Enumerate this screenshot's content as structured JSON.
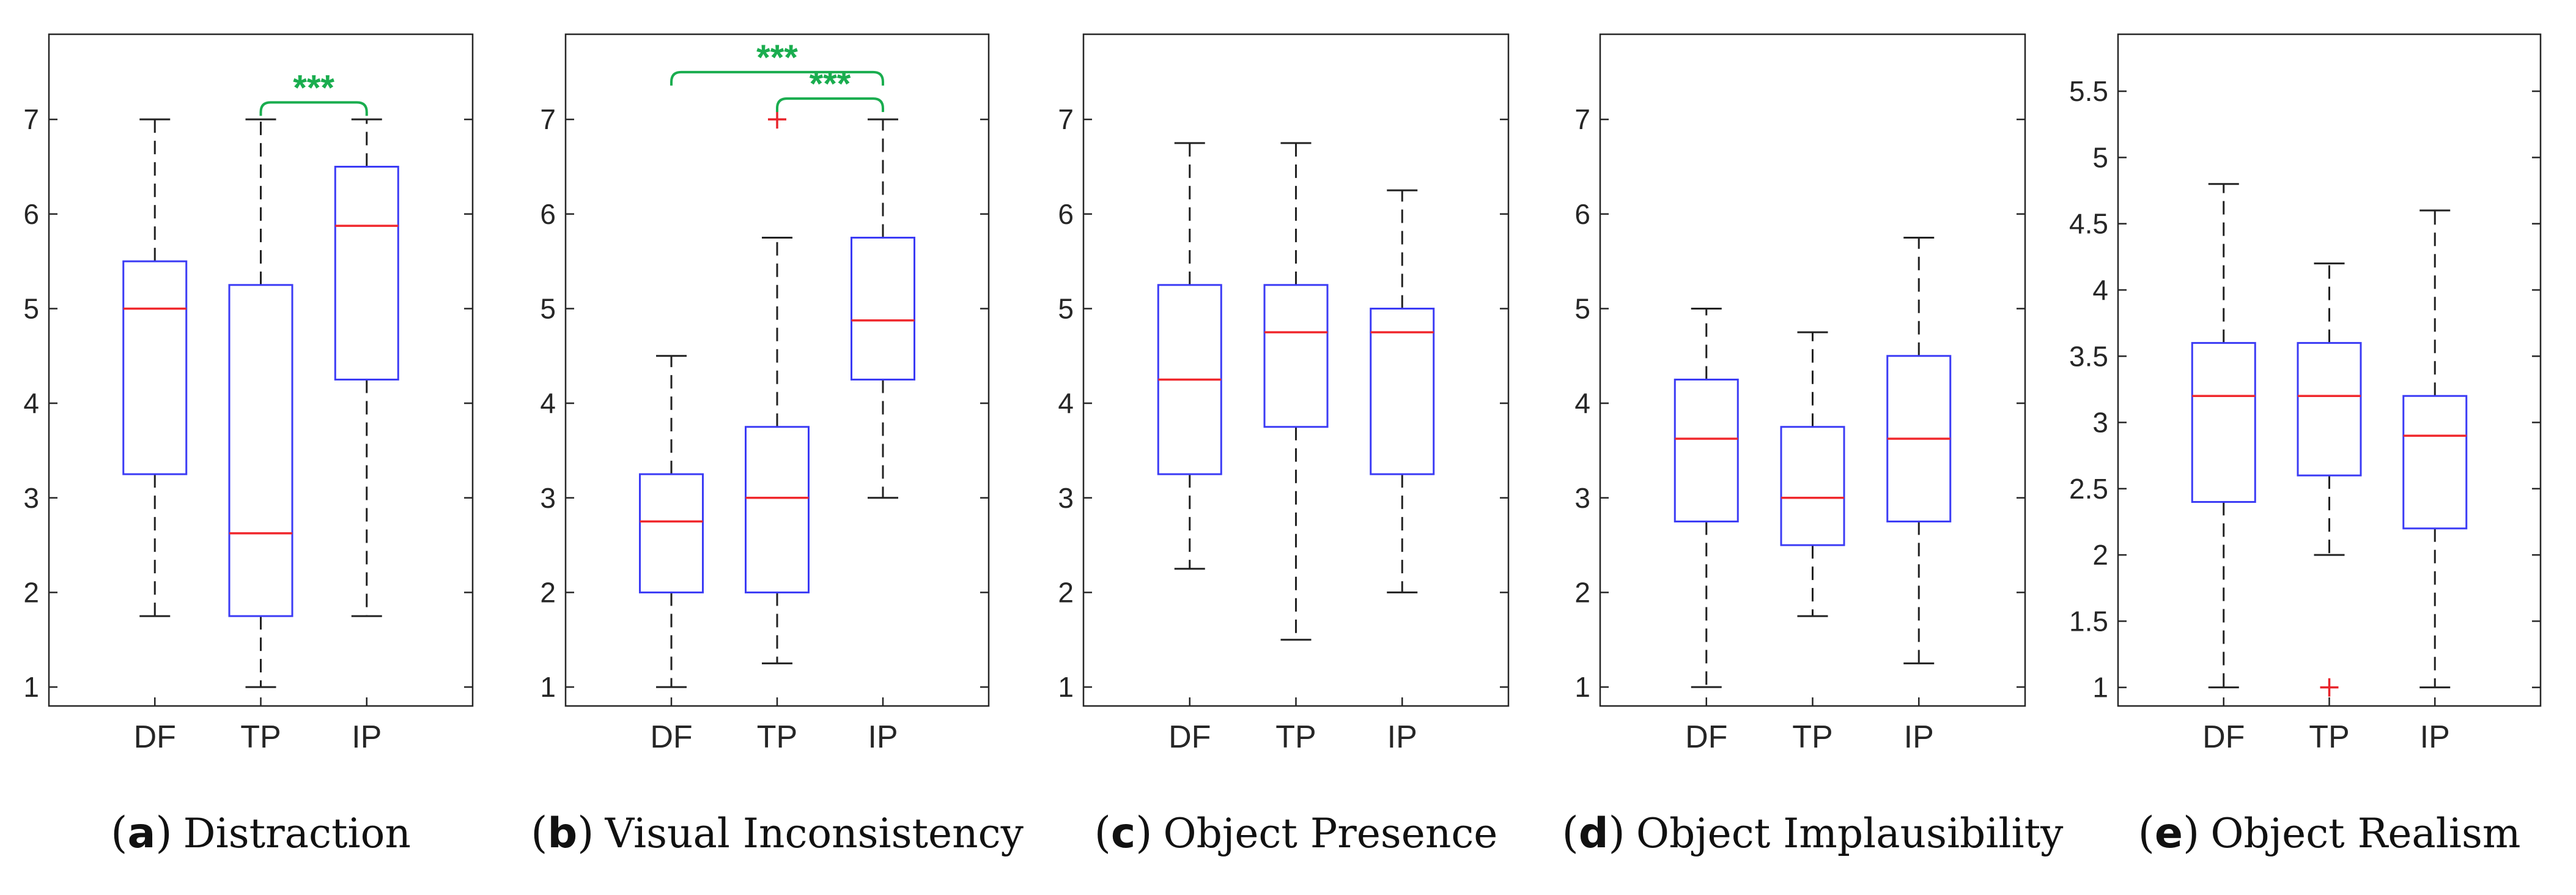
{
  "chart_data": [
    {
      "type": "box",
      "id": "a",
      "letter": "a",
      "caption": "Distraction",
      "categories": [
        "DF",
        "TP",
        "IP"
      ],
      "ylim": [
        0.8,
        7.9
      ],
      "yticks": [
        1,
        2,
        3,
        4,
        5,
        6,
        7
      ],
      "ytick_labels": [
        "1",
        "2",
        "3",
        "4",
        "5",
        "6",
        "7"
      ],
      "boxes": [
        {
          "label": "DF",
          "min": 1.75,
          "q1": 3.25,
          "median": 5.0,
          "q3": 5.5,
          "max": 7.0,
          "outliers": []
        },
        {
          "label": "TP",
          "min": 1.0,
          "q1": 1.75,
          "median": 2.625,
          "q3": 5.25,
          "max": 7.0,
          "outliers": []
        },
        {
          "label": "IP",
          "min": 1.75,
          "q1": 4.25,
          "median": 5.875,
          "q3": 6.5,
          "max": 7.0,
          "outliers": []
        }
      ],
      "significance": [
        {
          "from": "TP",
          "to": "IP",
          "y": 7.18,
          "label": "***"
        }
      ]
    },
    {
      "type": "box",
      "id": "b",
      "letter": "b",
      "caption": "Visual Inconsistency",
      "categories": [
        "DF",
        "TP",
        "IP"
      ],
      "ylim": [
        0.8,
        7.9
      ],
      "yticks": [
        1,
        2,
        3,
        4,
        5,
        6,
        7
      ],
      "ytick_labels": [
        "1",
        "2",
        "3",
        "4",
        "5",
        "6",
        "7"
      ],
      "boxes": [
        {
          "label": "DF",
          "min": 1.0,
          "q1": 2.0,
          "median": 2.75,
          "q3": 3.25,
          "max": 4.5,
          "outliers": []
        },
        {
          "label": "TP",
          "min": 1.25,
          "q1": 2.0,
          "median": 3.0,
          "q3": 3.75,
          "max": 5.75,
          "outliers": [
            7.0
          ]
        },
        {
          "label": "IP",
          "min": 3.0,
          "q1": 4.25,
          "median": 4.875,
          "q3": 5.75,
          "max": 7.0,
          "outliers": []
        }
      ],
      "significance": [
        {
          "from": "DF",
          "to": "IP",
          "y": 7.5,
          "label": "***"
        },
        {
          "from": "TP",
          "to": "IP",
          "y": 7.22,
          "label": "***"
        }
      ]
    },
    {
      "type": "box",
      "id": "c",
      "letter": "c",
      "caption": "Object Presence",
      "categories": [
        "DF",
        "TP",
        "IP"
      ],
      "ylim": [
        0.8,
        7.9
      ],
      "yticks": [
        1,
        2,
        3,
        4,
        5,
        6,
        7
      ],
      "ytick_labels": [
        "1",
        "2",
        "3",
        "4",
        "5",
        "6",
        "7"
      ],
      "boxes": [
        {
          "label": "DF",
          "min": 2.25,
          "q1": 3.25,
          "median": 4.25,
          "q3": 5.25,
          "max": 6.75,
          "outliers": []
        },
        {
          "label": "TP",
          "min": 1.5,
          "q1": 3.75,
          "median": 4.75,
          "q3": 5.25,
          "max": 6.75,
          "outliers": []
        },
        {
          "label": "IP",
          "min": 2.0,
          "q1": 3.25,
          "median": 4.75,
          "q3": 5.0,
          "max": 6.25,
          "outliers": []
        }
      ],
      "significance": []
    },
    {
      "type": "box",
      "id": "d",
      "letter": "d",
      "caption": "Object Implausibility",
      "categories": [
        "DF",
        "TP",
        "IP"
      ],
      "ylim": [
        0.8,
        7.9
      ],
      "yticks": [
        1,
        2,
        3,
        4,
        5,
        6,
        7
      ],
      "ytick_labels": [
        "1",
        "2",
        "3",
        "4",
        "5",
        "6",
        "7"
      ],
      "boxes": [
        {
          "label": "DF",
          "min": 1.0,
          "q1": 2.75,
          "median": 3.625,
          "q3": 4.25,
          "max": 5.0,
          "outliers": []
        },
        {
          "label": "TP",
          "min": 1.75,
          "q1": 2.5,
          "median": 3.0,
          "q3": 3.75,
          "max": 4.75,
          "outliers": []
        },
        {
          "label": "IP",
          "min": 1.25,
          "q1": 2.75,
          "median": 3.625,
          "q3": 4.5,
          "max": 5.75,
          "outliers": []
        }
      ],
      "significance": []
    },
    {
      "type": "box",
      "id": "e",
      "letter": "e",
      "caption": "Object Realism",
      "categories": [
        "DF",
        "TP",
        "IP"
      ],
      "ylim": [
        0.86,
        5.93
      ],
      "yticks": [
        1,
        1.5,
        2,
        2.5,
        3,
        3.5,
        4,
        4.5,
        5,
        5.5
      ],
      "ytick_labels": [
        "1",
        "1.5",
        "2",
        "2.5",
        "3",
        "3.5",
        "4",
        "4.5",
        "5",
        "5.5"
      ],
      "boxes": [
        {
          "label": "DF",
          "min": 1.0,
          "q1": 2.4,
          "median": 3.2,
          "q3": 3.6,
          "max": 4.8,
          "outliers": []
        },
        {
          "label": "TP",
          "min": 2.0,
          "q1": 2.6,
          "median": 3.2,
          "q3": 3.6,
          "max": 4.2,
          "outliers": [
            1.0
          ]
        },
        {
          "label": "IP",
          "min": 1.0,
          "q1": 2.2,
          "median": 2.9,
          "q3": 3.2,
          "max": 4.6,
          "outliers": []
        }
      ],
      "significance": []
    }
  ],
  "colors": {
    "box": "#3b3bf5",
    "median": "#f0282d",
    "whisker": "#222222",
    "outlier": "#e8242b",
    "significance": "#1aad4f",
    "axis": "#262626"
  }
}
